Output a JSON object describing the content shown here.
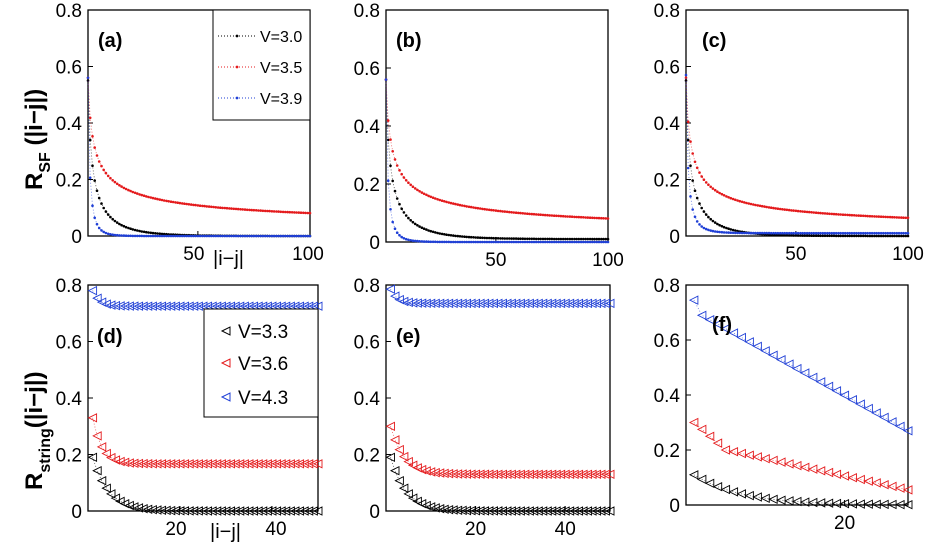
{
  "chart_data": [
    {
      "type": "scatter",
      "panel": "(a)",
      "ylabel": "R_SF (|i−j|)",
      "xlabel": "|i−j|",
      "xlim": [
        1,
        100
      ],
      "ylim": [
        0,
        0.8
      ],
      "xticks": [
        "50",
        "100"
      ],
      "yticks": [
        "0",
        "0.2",
        "0.4",
        "0.6",
        "0.8"
      ],
      "legend": {
        "position": "top-right",
        "entries": [
          "V=3.0",
          "V=3.5",
          "V=3.9"
        ]
      },
      "series": [
        {
          "name": "V=3.0",
          "color": "#000000",
          "model": {
            "kind": "powexp",
            "a": 0.55,
            "p": 0.6,
            "tau": 15,
            "c": 0.0
          }
        },
        {
          "name": "V=3.5",
          "color": "#e41a1c",
          "model": {
            "kind": "power",
            "a": 0.56,
            "p": 0.42,
            "c": 0.0
          }
        },
        {
          "name": "V=3.9",
          "color": "#1f3fd6",
          "model": {
            "kind": "powexp",
            "a": 0.56,
            "p": 1.2,
            "tau": 6,
            "c": 0.0
          }
        }
      ]
    },
    {
      "type": "scatter",
      "panel": "(b)",
      "xlim": [
        1,
        100
      ],
      "ylim": [
        0,
        0.8
      ],
      "xticks": [
        "50",
        "100"
      ],
      "yticks": [
        "0",
        "0.2",
        "0.4",
        "0.6",
        "0.8"
      ],
      "series": [
        {
          "name": "V=3.0",
          "color": "#000000",
          "model": {
            "kind": "powexp",
            "a": 0.55,
            "p": 0.6,
            "tau": 17,
            "c": 0.01
          }
        },
        {
          "name": "V=3.5",
          "color": "#e41a1c",
          "model": {
            "kind": "power",
            "a": 0.56,
            "p": 0.42,
            "c": 0.0
          }
        },
        {
          "name": "V=3.9",
          "color": "#1f3fd6",
          "model": {
            "kind": "powexp",
            "a": 0.56,
            "p": 1.2,
            "tau": 7,
            "c": 0.0
          }
        }
      ]
    },
    {
      "type": "scatter",
      "panel": "(c)",
      "xlim": [
        1,
        100
      ],
      "ylim": [
        0,
        0.8
      ],
      "xticks": [
        "50",
        "100"
      ],
      "yticks": [
        "0",
        "0.2",
        "0.4",
        "0.6",
        "0.8"
      ],
      "series": [
        {
          "name": "V=3.0",
          "color": "#000000",
          "model": {
            "kind": "powexp",
            "a": 0.55,
            "p": 0.6,
            "tau": 15,
            "c": 0.0
          }
        },
        {
          "name": "V=3.5",
          "color": "#e41a1c",
          "model": {
            "kind": "power",
            "a": 0.56,
            "p": 0.47,
            "c": 0.0
          }
        },
        {
          "name": "V=3.9",
          "color": "#1f3fd6",
          "model": {
            "kind": "powexp",
            "a": 0.56,
            "p": 1.1,
            "tau": 8,
            "c": 0.01
          }
        }
      ]
    },
    {
      "type": "scatter",
      "panel": "(d)",
      "ylabel": "R_string(|i−j|)",
      "xlabel": "|i−j|",
      "xlim": [
        0,
        50
      ],
      "ylim": [
        0,
        0.8
      ],
      "xticks": [
        "20",
        "40"
      ],
      "yticks": [
        "0",
        "0.2",
        "0.4",
        "0.6",
        "0.8"
      ],
      "legend": {
        "position": "middle-right",
        "entries": [
          "V=3.3",
          "V=3.6",
          "V=4.3"
        ]
      },
      "series": [
        {
          "name": "V=3.3",
          "color": "#000000",
          "model": {
            "kind": "expdecay",
            "first": 0.19,
            "c": 0.0,
            "tau": 3.5
          }
        },
        {
          "name": "V=3.6",
          "color": "#e41a1c",
          "model": {
            "kind": "expdecay",
            "first": 0.33,
            "c": 0.167,
            "tau": 2.0
          }
        },
        {
          "name": "V=4.3",
          "color": "#1f3fd6",
          "model": {
            "kind": "expdecay",
            "first": 0.78,
            "c": 0.725,
            "tau": 1.5
          }
        }
      ]
    },
    {
      "type": "scatter",
      "panel": "(e)",
      "xlim": [
        0,
        50
      ],
      "ylim": [
        0,
        0.8
      ],
      "xticks": [
        "20",
        "40"
      ],
      "yticks": [
        "0",
        "0.2",
        "0.4",
        "0.6",
        "0.8"
      ],
      "series": [
        {
          "name": "V=3.3",
          "color": "#000000",
          "model": {
            "kind": "expdecay",
            "first": 0.19,
            "c": 0.0,
            "tau": 3.5
          }
        },
        {
          "name": "V=3.6",
          "color": "#e41a1c",
          "model": {
            "kind": "expdecay",
            "first": 0.3,
            "c": 0.13,
            "tau": 3.0
          }
        },
        {
          "name": "V=4.3",
          "color": "#1f3fd6",
          "model": {
            "kind": "expdecay",
            "first": 0.785,
            "c": 0.735,
            "tau": 1.5
          }
        }
      ]
    },
    {
      "type": "scatter",
      "panel": "(f)",
      "xlim": [
        0,
        28
      ],
      "ylim": [
        0,
        0.8
      ],
      "xticks": [
        "20"
      ],
      "yticks": [
        "0",
        "0.2",
        "0.4",
        "0.6",
        "0.8"
      ],
      "series": [
        {
          "name": "V=3.3",
          "color": "#000000",
          "model": {
            "kind": "expdecay",
            "first": 0.11,
            "c": 0.0,
            "tau": 6.0
          }
        },
        {
          "name": "V=3.6",
          "color": "#e41a1c",
          "model": {
            "kind": "lineardecay",
            "first": 0.3,
            "knee": 0.2,
            "kneeAt": 4,
            "end": 0.055
          }
        },
        {
          "name": "V=4.3",
          "color": "#1f3fd6",
          "model": {
            "kind": "lineardecay",
            "first": 0.745,
            "knee": 0.69,
            "kneeAt": 1,
            "end": 0.27
          }
        }
      ]
    }
  ],
  "text": {
    "panel_labels": [
      "(a)",
      "(b)",
      "(c)",
      "(d)",
      "(e)",
      "(f)"
    ],
    "ylabel_top_main": "R",
    "ylabel_top_sub": "SF",
    "ylabel_top_tail": " (|i−j|)",
    "ylabel_bottom_main": "R",
    "ylabel_bottom_sub": "string",
    "ylabel_bottom_tail": "(|i−j|)",
    "xlabel_top": "|i−j|",
    "xlabel_bottom": "|i−j|",
    "legend_top": [
      "V=3.0",
      "V=3.5",
      "V=3.9"
    ],
    "legend_bottom": [
      "V=3.3",
      "V=3.6",
      "V=4.3"
    ]
  }
}
